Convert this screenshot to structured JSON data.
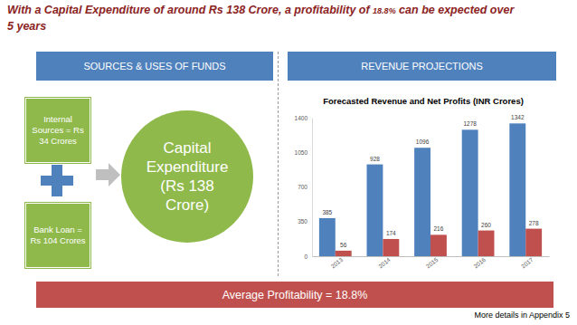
{
  "chart_data": {
    "type": "bar",
    "title": "Forecasted Revenue and Net Profits (INR Crores)",
    "categories": [
      "2013",
      "2014",
      "2015",
      "2016",
      "2017"
    ],
    "series": [
      {
        "name": "Revenue",
        "color": "#4f81bd",
        "values": [
          385,
          928,
          1096,
          1278,
          1342
        ]
      },
      {
        "name": "Net Profits",
        "color": "#c0504d",
        "values": [
          56,
          174,
          216,
          260,
          278
        ]
      }
    ],
    "ylim": [
      0,
      1400
    ],
    "yticks": [
      0,
      350,
      700,
      1050,
      1400
    ],
    "grid": false,
    "data_labels": true
  },
  "slide": {
    "title": [
      "With a Capital Expenditure of around Rs 138 Crore, a profitability of ",
      "18.8%",
      " can be expected over 5 years"
    ],
    "left_header": "SOURCES & USES OF FUNDS",
    "right_header": "REVENUE PROJECTIONS",
    "internal_sources": "Internal Sources = Rs 34 Crores",
    "bank_loan": "Bank Loan = Rs 104 Crores",
    "capital_expenditure": "Capital Expenditure (Rs 138 Crore)",
    "banner": "Average Profitability = 18.8%",
    "footnote": "More details in Appendix 5"
  }
}
